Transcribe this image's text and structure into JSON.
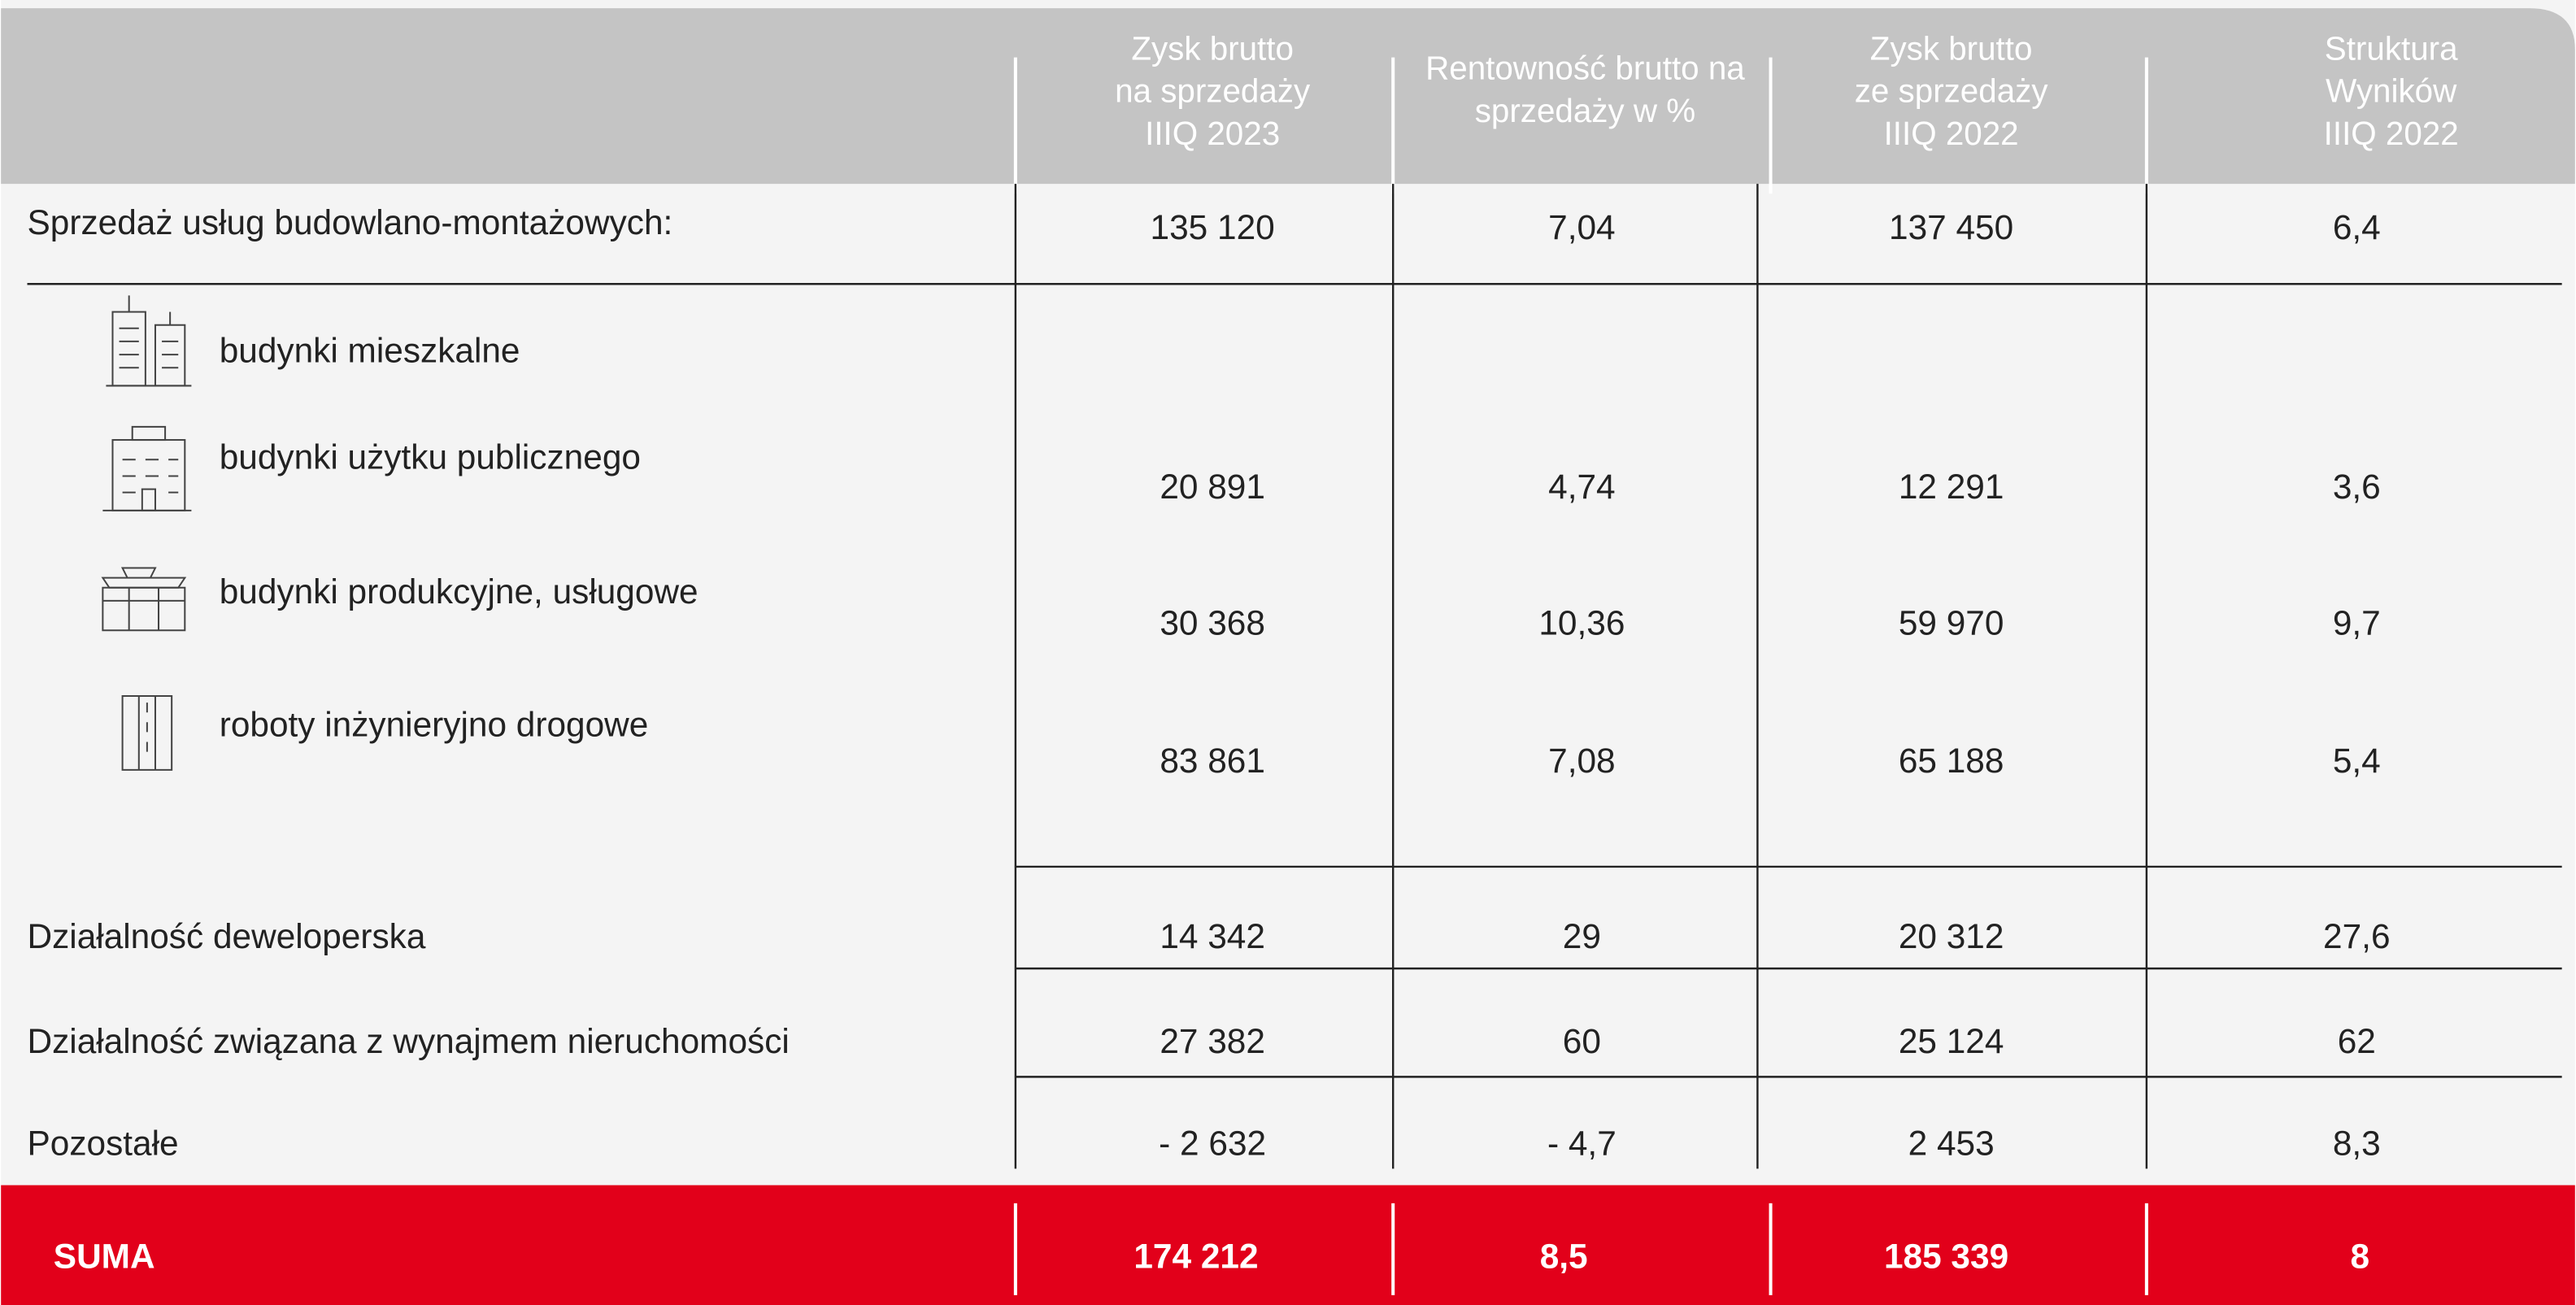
{
  "header": {
    "columns": [
      [
        "Zysk brutto",
        "na sprzedaży",
        "IIIQ 2023"
      ],
      [
        "Rentowność brutto na",
        "sprzedaży w %"
      ],
      [
        "Zysk brutto",
        "ze sprzedaży",
        "IIIQ 2022"
      ],
      [
        "Struktura",
        "Wyników",
        "IIIQ 2022"
      ]
    ]
  },
  "table": {
    "main_row": {
      "label": "Sprzedaż usług budowlano-montażowych:",
      "values": [
        "135 120",
        "7,04",
        "137 450",
        "6,4"
      ]
    },
    "sub_rows": [
      {
        "label": "budynki mieszkalne"
      },
      {
        "label": "budynki użytku publicznego",
        "values": [
          "20 891",
          "4,74",
          "12 291",
          "3,6"
        ]
      },
      {
        "label": "budynki produkcyjne, usługowe",
        "values": [
          "30 368",
          "10,36",
          "59 970",
          "9,7"
        ]
      },
      {
        "label": "roboty inżynieryjno drogowe",
        "values": [
          "83 861",
          "7,08",
          "65 188",
          "5,4"
        ]
      }
    ],
    "rows": [
      {
        "label": "Działalność deweloperska",
        "values": [
          "14 342",
          "29",
          "20 312",
          "27,6"
        ]
      },
      {
        "label": "Działalność związana z wynajmem nieruchomości",
        "values": [
          "27 382",
          "60",
          "25 124",
          "62"
        ]
      },
      {
        "label": "Pozostałe",
        "values": [
          "- 2 632",
          "- 4,7",
          "2 453",
          "8,3"
        ]
      }
    ],
    "total": {
      "label": "SUMA",
      "values": [
        "174 212",
        "8,5",
        "185 339",
        "8"
      ]
    }
  }
}
